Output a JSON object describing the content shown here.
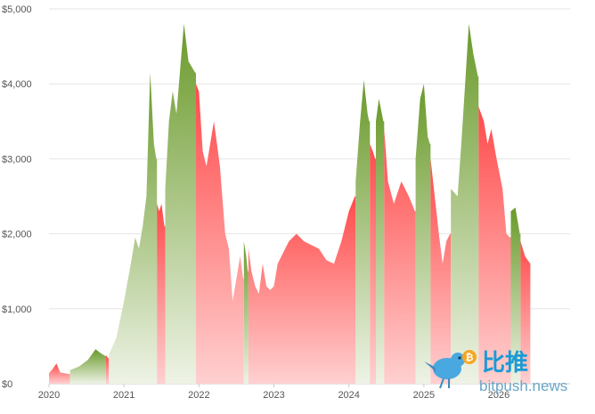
{
  "chart_data": {
    "type": "area",
    "title": "",
    "xlabel": "",
    "ylabel": "",
    "x_ticks": [
      "2020",
      "2021",
      "2022",
      "2023",
      "2024",
      "2025",
      "2026"
    ],
    "x_tick_positions": [
      2020,
      2021,
      2022,
      2023,
      2024,
      2025,
      2026
    ],
    "xlim": [
      2020,
      2026.95
    ],
    "y_ticks": [
      "$0",
      "$1,000",
      "$2,000",
      "$3,000",
      "$4,000",
      "$5,000"
    ],
    "y_tick_values": [
      0,
      1000,
      2000,
      3000,
      4000,
      5000
    ],
    "ylim": [
      0,
      5000
    ],
    "grid": true,
    "up_color": "#6a9a2a",
    "down_color": "#ff4a4a",
    "series": [
      {
        "values": [
          [
            2020.0,
            140,
            "down"
          ],
          [
            2020.05,
            200,
            "down"
          ],
          [
            2020.1,
            270,
            "down"
          ],
          [
            2020.15,
            150,
            "down"
          ],
          [
            2020.27,
            130,
            "down"
          ],
          [
            2020.28,
            180,
            "up"
          ],
          [
            2020.4,
            230,
            "up"
          ],
          [
            2020.52,
            320,
            "up"
          ],
          [
            2020.62,
            460,
            "up"
          ],
          [
            2020.7,
            400,
            "up"
          ],
          [
            2020.75,
            370,
            "up"
          ],
          [
            2020.76,
            380,
            "down"
          ],
          [
            2020.79,
            340,
            "down"
          ],
          [
            2020.8,
            390,
            "up"
          ],
          [
            2020.9,
            620,
            "up"
          ],
          [
            2021.0,
            1100,
            "up"
          ],
          [
            2021.1,
            1650,
            "up"
          ],
          [
            2021.15,
            1950,
            "up"
          ],
          [
            2021.2,
            1800,
            "up"
          ],
          [
            2021.25,
            2100,
            "up"
          ],
          [
            2021.3,
            2500,
            "up"
          ],
          [
            2021.35,
            4150,
            "up"
          ],
          [
            2021.4,
            3200,
            "up"
          ],
          [
            2021.43,
            3000,
            "up"
          ],
          [
            2021.44,
            2400,
            "down"
          ],
          [
            2021.47,
            2300,
            "down"
          ],
          [
            2021.5,
            2400,
            "down"
          ],
          [
            2021.54,
            2100,
            "down"
          ],
          [
            2021.55,
            2600,
            "up"
          ],
          [
            2021.6,
            3500,
            "up"
          ],
          [
            2021.65,
            3900,
            "up"
          ],
          [
            2021.7,
            3600,
            "up"
          ],
          [
            2021.75,
            4200,
            "up"
          ],
          [
            2021.8,
            4800,
            "up"
          ],
          [
            2021.86,
            4300,
            "up"
          ],
          [
            2021.95,
            4150,
            "up"
          ],
          [
            2021.96,
            4000,
            "down"
          ],
          [
            2022.0,
            3900,
            "down"
          ],
          [
            2022.05,
            3100,
            "down"
          ],
          [
            2022.1,
            2900,
            "down"
          ],
          [
            2022.2,
            3500,
            "down"
          ],
          [
            2022.28,
            2900,
            "down"
          ],
          [
            2022.35,
            2000,
            "down"
          ],
          [
            2022.4,
            1800,
            "down"
          ],
          [
            2022.45,
            1100,
            "down"
          ],
          [
            2022.55,
            1700,
            "down"
          ],
          [
            2022.59,
            1400,
            "down"
          ],
          [
            2022.6,
            1900,
            "up"
          ],
          [
            2022.63,
            1700,
            "up"
          ],
          [
            2022.65,
            1500,
            "up"
          ],
          [
            2022.66,
            1800,
            "down"
          ],
          [
            2022.7,
            1500,
            "down"
          ],
          [
            2022.75,
            1300,
            "down"
          ],
          [
            2022.8,
            1200,
            "down"
          ],
          [
            2022.85,
            1600,
            "down"
          ],
          [
            2022.9,
            1300,
            "down"
          ],
          [
            2022.95,
            1250,
            "down"
          ],
          [
            2023.0,
            1300,
            "down"
          ],
          [
            2023.05,
            1600,
            "down"
          ],
          [
            2023.1,
            1700,
            "down"
          ],
          [
            2023.2,
            1900,
            "down"
          ],
          [
            2023.3,
            2000,
            "down"
          ],
          [
            2023.4,
            1900,
            "down"
          ],
          [
            2023.5,
            1850,
            "down"
          ],
          [
            2023.6,
            1800,
            "down"
          ],
          [
            2023.7,
            1650,
            "down"
          ],
          [
            2023.8,
            1600,
            "down"
          ],
          [
            2023.9,
            1900,
            "down"
          ],
          [
            2024.0,
            2300,
            "down"
          ],
          [
            2024.08,
            2500,
            "down"
          ],
          [
            2024.09,
            2700,
            "up"
          ],
          [
            2024.15,
            3500,
            "up"
          ],
          [
            2024.2,
            4050,
            "up"
          ],
          [
            2024.25,
            3600,
            "up"
          ],
          [
            2024.27,
            3500,
            "up"
          ],
          [
            2024.28,
            3200,
            "down"
          ],
          [
            2024.32,
            3100,
            "down"
          ],
          [
            2024.35,
            3000,
            "down"
          ],
          [
            2024.36,
            3500,
            "up"
          ],
          [
            2024.4,
            3800,
            "up"
          ],
          [
            2024.46,
            3500,
            "up"
          ],
          [
            2024.47,
            3400,
            "down"
          ],
          [
            2024.52,
            2700,
            "down"
          ],
          [
            2024.6,
            2400,
            "down"
          ],
          [
            2024.7,
            2700,
            "down"
          ],
          [
            2024.8,
            2500,
            "down"
          ],
          [
            2024.88,
            2300,
            "down"
          ],
          [
            2024.89,
            3000,
            "up"
          ],
          [
            2024.95,
            3800,
            "up"
          ],
          [
            2025.0,
            4000,
            "up"
          ],
          [
            2025.05,
            3300,
            "up"
          ],
          [
            2025.08,
            3200,
            "up"
          ],
          [
            2025.09,
            3000,
            "down"
          ],
          [
            2025.2,
            2000,
            "down"
          ],
          [
            2025.25,
            1600,
            "down"
          ],
          [
            2025.3,
            1900,
            "down"
          ],
          [
            2025.35,
            2000,
            "down"
          ],
          [
            2025.36,
            2600,
            "up"
          ],
          [
            2025.45,
            2500,
            "up"
          ],
          [
            2025.5,
            3200,
            "up"
          ],
          [
            2025.55,
            4000,
            "up"
          ],
          [
            2025.6,
            4800,
            "up"
          ],
          [
            2025.66,
            4400,
            "up"
          ],
          [
            2025.72,
            4100,
            "up"
          ],
          [
            2025.73,
            3700,
            "down"
          ],
          [
            2025.8,
            3500,
            "down"
          ],
          [
            2025.85,
            3200,
            "down"
          ],
          [
            2025.9,
            3400,
            "down"
          ],
          [
            2025.97,
            3000,
            "down"
          ],
          [
            2026.05,
            2600,
            "down"
          ],
          [
            2026.1,
            2000,
            "down"
          ],
          [
            2026.15,
            1950,
            "down"
          ],
          [
            2026.16,
            2300,
            "up"
          ],
          [
            2026.22,
            2350,
            "up"
          ],
          [
            2026.28,
            2000,
            "up"
          ],
          [
            2026.29,
            1900,
            "down"
          ],
          [
            2026.35,
            1700,
            "down"
          ],
          [
            2026.42,
            1600,
            "down"
          ]
        ]
      }
    ]
  },
  "watermark": {
    "zh_text": "比推",
    "en_text": "bitpush.news",
    "bird_color": "#4aa8e0",
    "coin_color": "#f5a623",
    "coin_text": "₿"
  }
}
